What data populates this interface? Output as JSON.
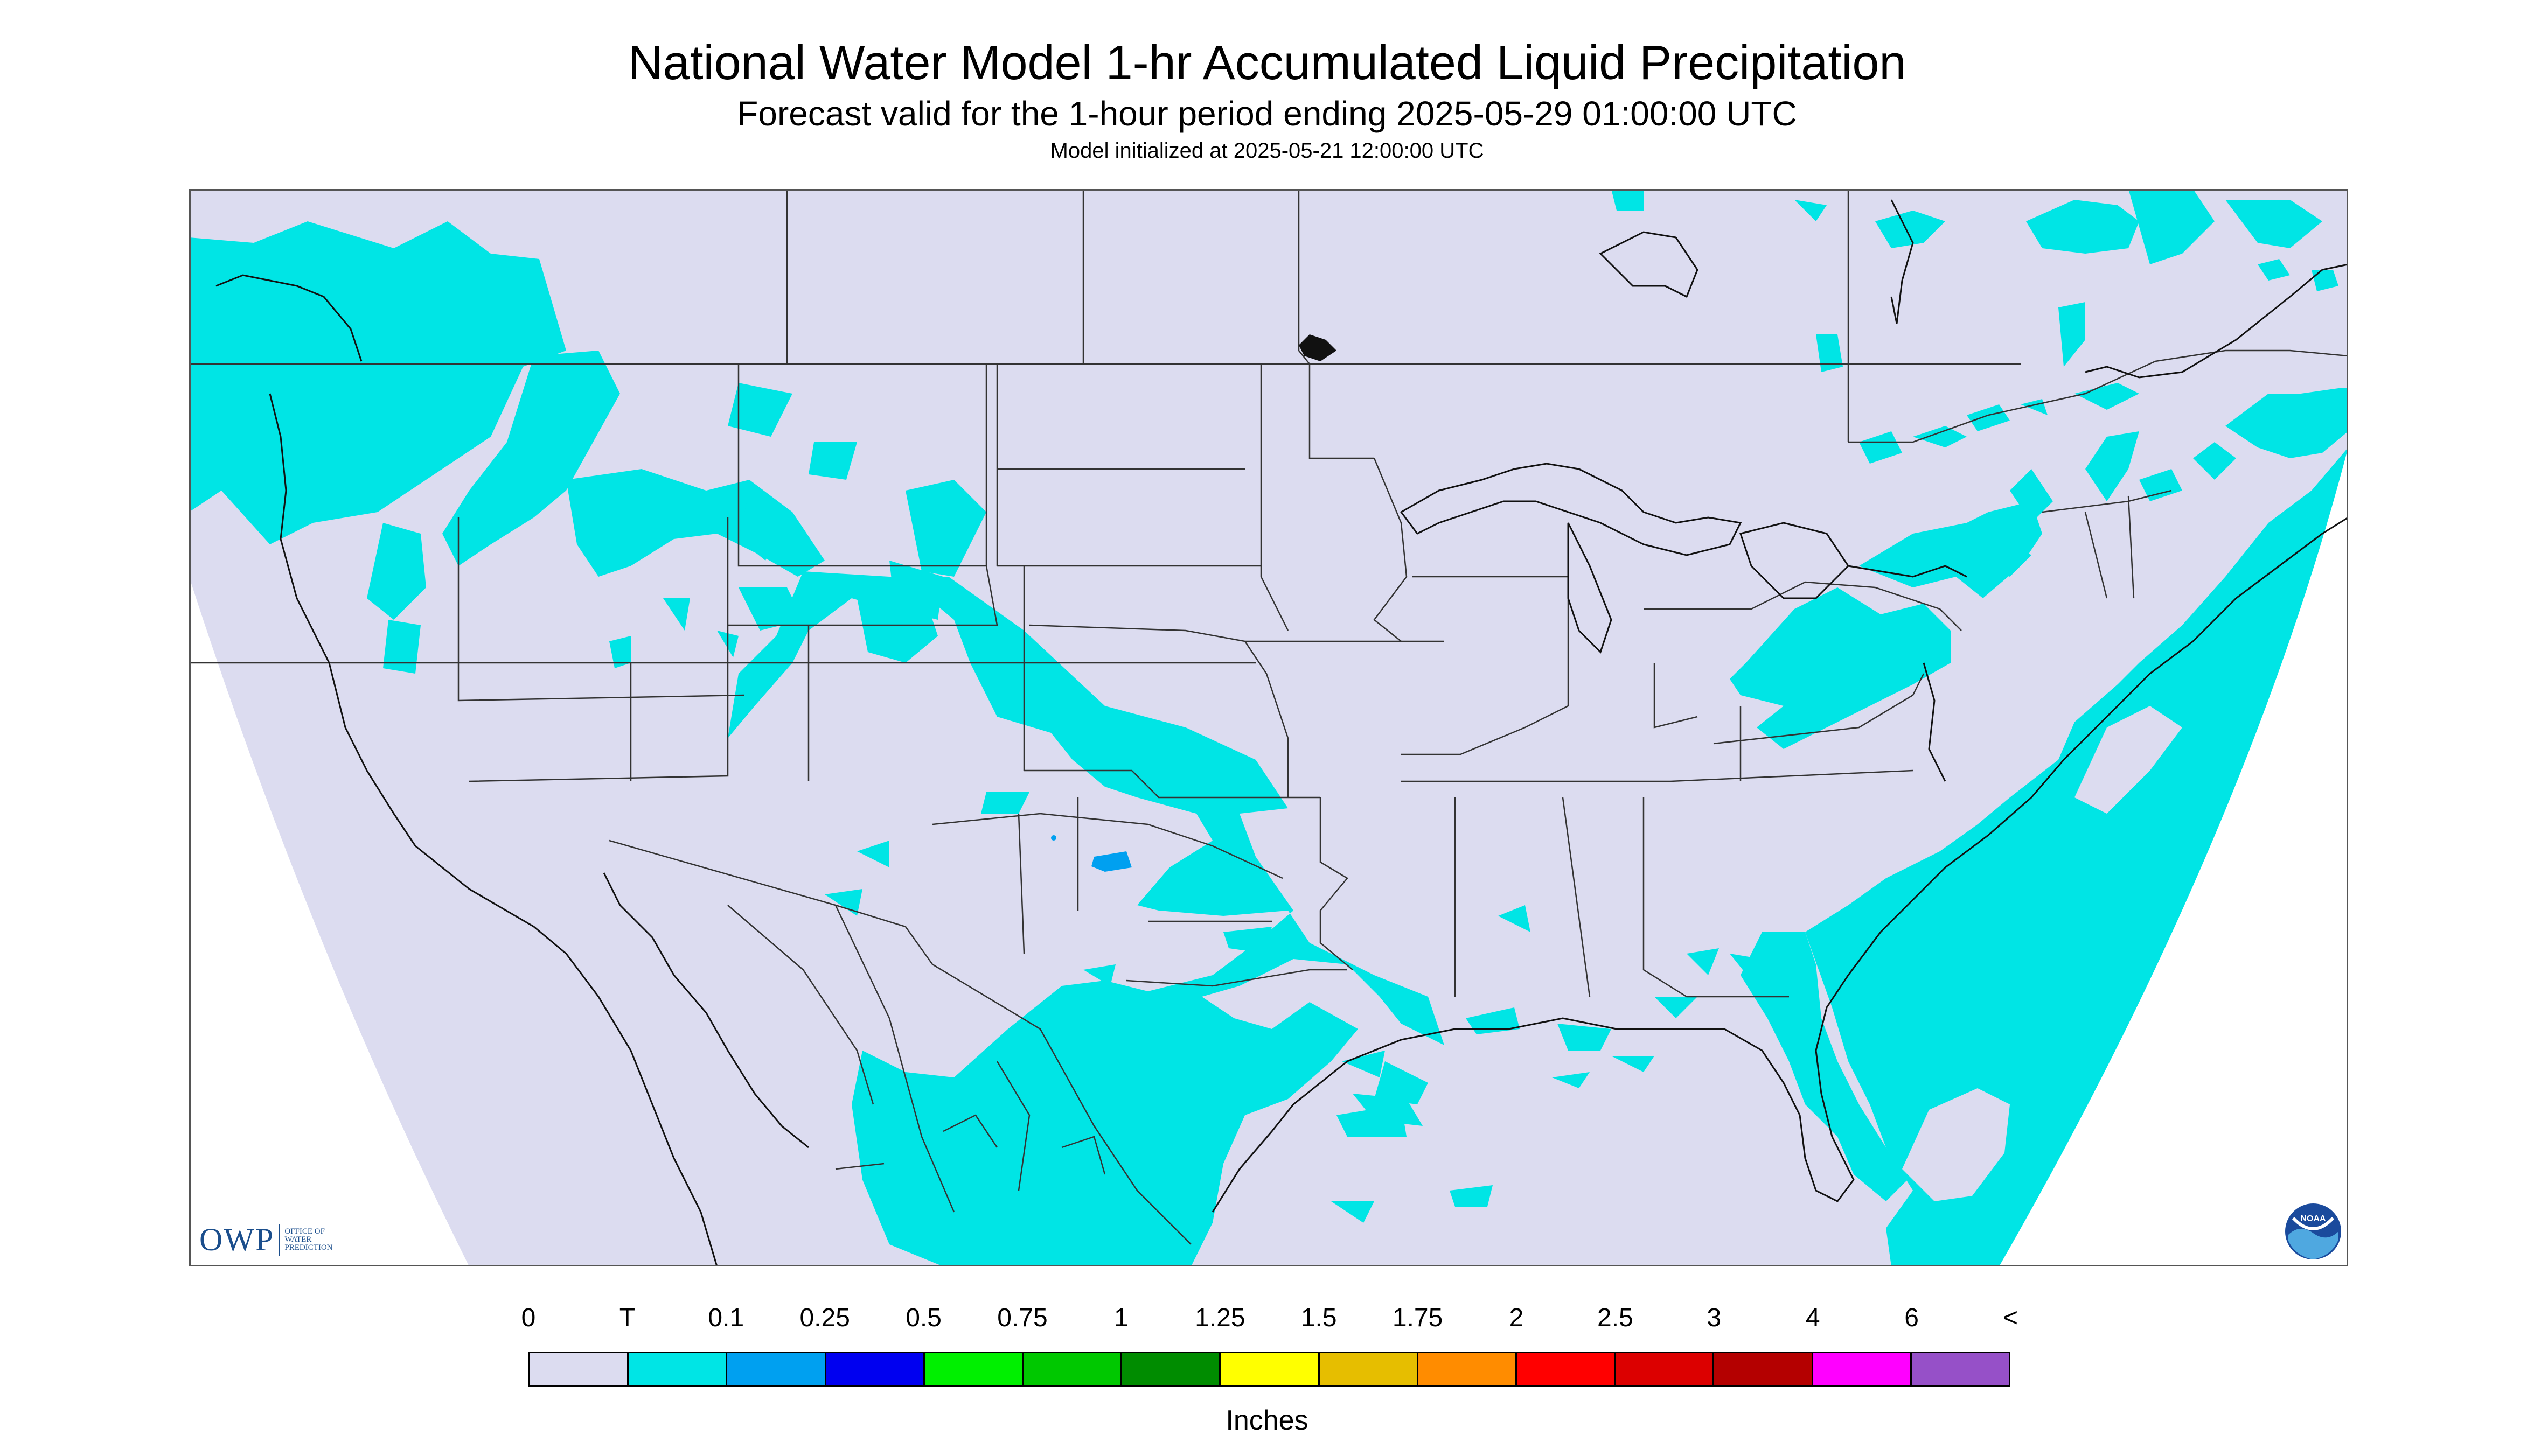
{
  "title": "National Water Model 1-hr Accumulated Liquid Precipitation",
  "subtitle": "Forecast valid for the 1-hour period ending 2025-05-29 01:00:00 UTC",
  "init_text": "Model initialized at 2025-05-21 12:00:00 UTC",
  "logos": {
    "owp_big": "OWP",
    "owp_small": "OFFICE OF WATER PREDICTION",
    "noaa_text": "NOAA"
  },
  "legend": {
    "labels": [
      "0",
      "T",
      "0.1",
      "0.25",
      "0.5",
      "0.75",
      "1",
      "1.25",
      "1.5",
      "1.75",
      "2",
      "2.5",
      "3",
      "4",
      "6",
      "<"
    ],
    "colors": [
      "#dcdcf0",
      "#00e5e5",
      "#00a0f0",
      "#0000f0",
      "#00f000",
      "#00c800",
      "#008c00",
      "#ffff00",
      "#e6be00",
      "#ff8c00",
      "#ff0000",
      "#dc0000",
      "#b40000",
      "#ff00ff",
      "#9650c8"
    ],
    "units": "Inches"
  },
  "map_colors": {
    "background": "#dcdcf0",
    "trace": "#00e5e5",
    "light": "#00a0f0",
    "outside": "#ffffff",
    "border": "#333333"
  }
}
